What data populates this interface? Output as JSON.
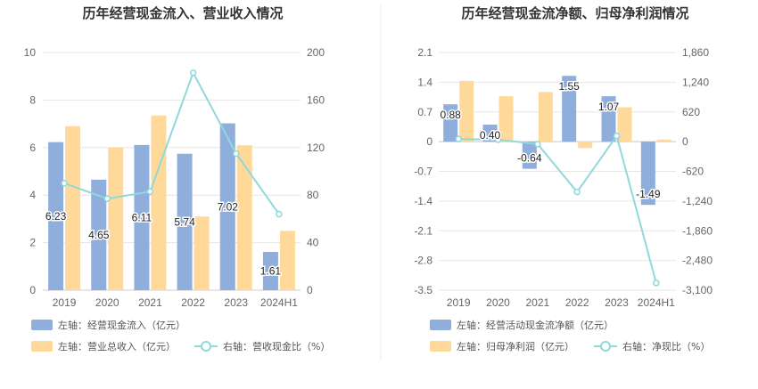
{
  "colors": {
    "bar_left": "#8FAEDC",
    "bar_right": "#FFD99A",
    "line": "#8FD8DC",
    "grid": "#E6E6E6",
    "divider": "#EEEEEE"
  },
  "chart_data": [
    {
      "type": "bar",
      "title": "历年经营现金流入、营业收入情况",
      "categories": [
        "2019",
        "2020",
        "2021",
        "2022",
        "2023",
        "2024H1"
      ],
      "left_axis": {
        "min": 0,
        "max": 10,
        "ticks": [
          "0",
          "2",
          "4",
          "6",
          "8",
          "10"
        ]
      },
      "right_axis": {
        "min": 0,
        "max": 200,
        "ticks": [
          "0",
          "40",
          "80",
          "120",
          "160",
          "200"
        ]
      },
      "series": [
        {
          "name": "左轴：经营现金流入（亿元）",
          "type": "bar",
          "axis": "left",
          "values": [
            6.23,
            4.65,
            6.11,
            5.74,
            7.02,
            1.61
          ],
          "labels": [
            "6.23",
            "4.65",
            "6.11",
            "5.74",
            "7.02",
            "1.61"
          ]
        },
        {
          "name": "左轴：营业总收入（亿元）",
          "type": "bar",
          "axis": "left",
          "values": [
            6.9,
            6.0,
            7.35,
            3.1,
            6.1,
            2.5
          ]
        },
        {
          "name": "右轴：营收现金比（%）",
          "type": "line",
          "axis": "right",
          "values": [
            90,
            77,
            83,
            183,
            115,
            64
          ]
        }
      ],
      "grid": true,
      "legend_position": "bottom"
    },
    {
      "type": "bar",
      "title": "历年经营现金流净额、归母净利润情况",
      "categories": [
        "2019",
        "2020",
        "2021",
        "2022",
        "2023",
        "2024H1"
      ],
      "left_axis": {
        "min": -3.5,
        "max": 2.1,
        "ticks": [
          "-3.5",
          "-2.8",
          "-2.1",
          "-1.4",
          "-0.7",
          "0",
          "0.7",
          "1.4",
          "2.1"
        ]
      },
      "right_axis": {
        "min": -3100,
        "max": 1860,
        "ticks": [
          "-3,100",
          "-2,480",
          "-1,860",
          "-1,240",
          "-620",
          "0",
          "620",
          "1,240",
          "1,860"
        ]
      },
      "series": [
        {
          "name": "左轴：经营活动现金流净额（亿元）",
          "type": "bar",
          "axis": "left",
          "values": [
            0.88,
            0.4,
            -0.64,
            1.55,
            1.07,
            -1.49
          ],
          "labels": [
            "0.88",
            "0.40",
            "-0.64",
            "1.55",
            "1.07",
            "-1.49"
          ]
        },
        {
          "name": "左轴：归母净利润（亿元）",
          "type": "bar",
          "axis": "left",
          "values": [
            1.43,
            1.07,
            1.17,
            -0.15,
            0.81,
            0.05
          ]
        },
        {
          "name": "右轴：净现比（%）",
          "type": "line",
          "axis": "right",
          "values": [
            55,
            40,
            -50,
            -1050,
            120,
            -2950
          ]
        }
      ],
      "grid": true,
      "legend_position": "bottom"
    }
  ]
}
